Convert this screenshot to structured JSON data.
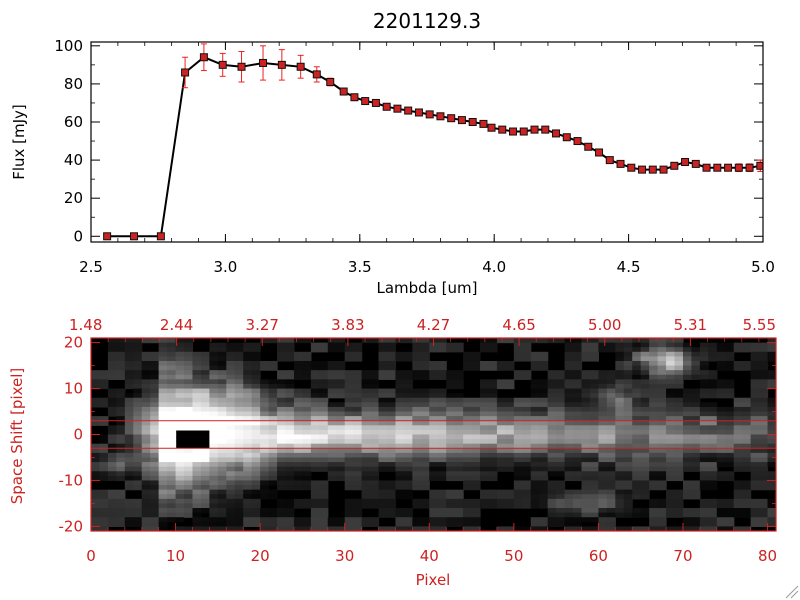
{
  "chart_data": [
    {
      "type": "line",
      "title": "2201129.3",
      "xlabel": "Lambda [um]",
      "ylabel": "Flux [mJy]",
      "xlim": [
        2.5,
        5.0
      ],
      "ylim": [
        -3,
        102
      ],
      "xticks": [
        "2.5",
        "3.0",
        "3.5",
        "4.0",
        "4.5",
        "5.0"
      ],
      "xtick_values": [
        2.5,
        3.0,
        3.5,
        4.0,
        4.5,
        5.0
      ],
      "yticks": [
        "0",
        "20",
        "40",
        "60",
        "80",
        "100"
      ],
      "ytick_values": [
        0,
        20,
        40,
        60,
        80,
        100
      ],
      "line_color": "#000000",
      "marker_color": "#cc2222",
      "errorbar_color": "#ee2222",
      "series": [
        {
          "x": [
            2.56,
            2.66,
            2.76,
            2.85,
            2.92,
            2.99,
            3.06,
            3.14,
            3.21,
            3.28,
            3.34,
            3.39,
            3.44,
            3.48,
            3.52,
            3.56,
            3.6,
            3.64,
            3.68,
            3.72,
            3.76,
            3.8,
            3.84,
            3.88,
            3.92,
            3.96,
            3.99,
            4.03,
            4.07,
            4.11,
            4.15,
            4.19,
            4.23,
            4.27,
            4.31,
            4.35,
            4.39,
            4.43,
            4.47,
            4.51,
            4.55,
            4.59,
            4.63,
            4.67,
            4.71,
            4.75,
            4.79,
            4.83,
            4.87,
            4.91,
            4.95,
            4.99
          ],
          "y": [
            0,
            0,
            0,
            86,
            94,
            90,
            89,
            91,
            90,
            89,
            85,
            81,
            76,
            73,
            71,
            70,
            68,
            67,
            66,
            65,
            64,
            63,
            62,
            61,
            60,
            59,
            57,
            56,
            55,
            55,
            56,
            56,
            54,
            52,
            50,
            47,
            44,
            40,
            38,
            36,
            35,
            35,
            35,
            37,
            39,
            38,
            36,
            36,
            36,
            36,
            36,
            37
          ],
          "err": [
            0,
            0,
            0,
            8,
            7,
            6,
            8,
            9,
            8,
            6,
            4,
            2,
            1,
            1,
            1,
            1,
            1,
            1,
            1,
            1,
            1,
            1,
            1,
            1,
            1,
            1,
            1,
            1,
            1,
            1,
            1,
            1,
            1,
            1,
            1,
            1,
            1,
            1,
            1,
            1,
            1,
            1,
            1,
            1,
            1,
            1,
            1,
            1,
            1,
            2,
            2,
            3
          ]
        }
      ]
    },
    {
      "type": "heatmap",
      "xlabel": "Pixel",
      "ylabel": "Space Shift [pixel]",
      "xlim": [
        0,
        81
      ],
      "ylim": [
        -21,
        21
      ],
      "xticks": [
        "0",
        "10",
        "20",
        "30",
        "40",
        "50",
        "60",
        "70",
        "80"
      ],
      "xtick_values": [
        0,
        10,
        20,
        30,
        40,
        50,
        60,
        70,
        80
      ],
      "yticks": [
        "-20",
        "-10",
        "0",
        "10",
        "20"
      ],
      "ytick_values": [
        -20,
        -10,
        0,
        10,
        20
      ],
      "top_axis_ticks": [
        "1.48",
        "2.44",
        "3.27",
        "3.83",
        "4.27",
        "4.65",
        "5.00",
        "5.31",
        "5.55"
      ],
      "aperture_lines": [
        3,
        -3
      ],
      "axis_color": "#cc2222"
    }
  ]
}
